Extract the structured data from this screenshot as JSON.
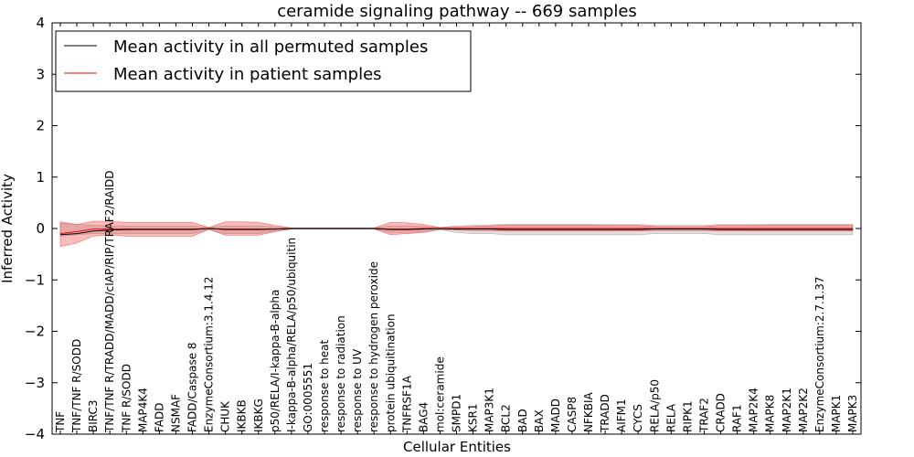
{
  "chart_data": {
    "type": "line",
    "title": "ceramide signaling pathway -- 669 samples",
    "xlabel": "Cellular Entities",
    "ylabel": "Inferred Activity",
    "ylim": [
      -4,
      4
    ],
    "yticks": [
      -4,
      -3,
      -2,
      -1,
      0,
      1,
      2,
      3,
      4
    ],
    "ytick_labels": [
      "−4",
      "−3",
      "−2",
      "−1",
      "0",
      "1",
      "2",
      "3",
      "4"
    ],
    "grid": false,
    "legend_location": "top-left",
    "categories": [
      "TNF",
      "TNF/TNF R/SODD",
      "BIRC3",
      "TNF/TNF R/TRADD/MADD/cIAP/RIP/TRAF2/RAIDD",
      "TNF R/SODD",
      "MAP4K4",
      "FADD",
      "NSMAF",
      "FADD/Caspase 8",
      "EnzymeConsortium:3.1.4.12",
      "CHUK",
      "IKBKB",
      "IKBKG",
      "p50/RELA/I-kappa-B-alpha",
      "I-kappa-B-alpha/RELA/p50/ubiquitin",
      "GO:0005551",
      "response to heat",
      "response to radiation",
      "response to UV",
      "response to hydrogen peroxide",
      "protein ubiquitination",
      "TNFRSF1A",
      "BAG4",
      "mol:ceramide",
      "SMPD1",
      "KSR1",
      "MAP3K1",
      "BCL2",
      "BAD",
      "BAX",
      "MADD",
      "CASP8",
      "NFKBIA",
      "TRADD",
      "AIFM1",
      "CYCS",
      "RELA/p50",
      "RELA",
      "RIPK1",
      "TRAF2",
      "CRADD",
      "RAF1",
      "MAP2K4",
      "MAPK8",
      "MAP2K1",
      "MAP2K2",
      "EnzymeConsortium:2.7.1.37",
      "MAPK1",
      "MAPK3"
    ],
    "series": [
      {
        "name": "Mean activity in all permuted samples",
        "color": "#000000",
        "values": [
          -0.12,
          -0.1,
          -0.05,
          -0.03,
          -0.02,
          -0.02,
          -0.02,
          -0.02,
          -0.02,
          0.0,
          -0.02,
          -0.02,
          -0.02,
          -0.01,
          0.0,
          0.0,
          0.0,
          0.0,
          0.0,
          0.0,
          -0.02,
          -0.02,
          -0.01,
          0.0,
          -0.01,
          -0.01,
          -0.01,
          -0.02,
          -0.02,
          -0.02,
          -0.02,
          -0.02,
          -0.02,
          -0.02,
          -0.02,
          -0.02,
          -0.01,
          -0.01,
          -0.01,
          -0.01,
          -0.02,
          -0.02,
          -0.02,
          -0.02,
          -0.02,
          -0.02,
          -0.02,
          -0.02,
          -0.02
        ],
        "band_lower": [
          -0.15,
          -0.12,
          -0.1,
          -0.1,
          -0.1,
          -0.1,
          -0.1,
          -0.1,
          -0.1,
          -0.02,
          -0.1,
          -0.1,
          -0.1,
          -0.05,
          -0.01,
          -0.01,
          -0.01,
          -0.01,
          -0.01,
          -0.01,
          -0.08,
          -0.08,
          -0.06,
          -0.02,
          -0.08,
          -0.1,
          -0.1,
          -0.12,
          -0.12,
          -0.12,
          -0.12,
          -0.12,
          -0.12,
          -0.12,
          -0.12,
          -0.12,
          -0.1,
          -0.1,
          -0.1,
          -0.1,
          -0.12,
          -0.12,
          -0.12,
          -0.12,
          -0.12,
          -0.12,
          -0.12,
          -0.12,
          -0.12
        ],
        "band_upper": [
          0.1,
          0.08,
          0.06,
          0.05,
          0.05,
          0.05,
          0.05,
          0.05,
          0.05,
          0.02,
          0.05,
          0.05,
          0.05,
          0.03,
          0.01,
          0.01,
          0.01,
          0.01,
          0.01,
          0.01,
          0.05,
          0.05,
          0.04,
          0.02,
          0.05,
          0.06,
          0.07,
          0.08,
          0.08,
          0.08,
          0.08,
          0.08,
          0.08,
          0.08,
          0.08,
          0.08,
          0.06,
          0.06,
          0.06,
          0.06,
          0.08,
          0.08,
          0.08,
          0.08,
          0.08,
          0.08,
          0.08,
          0.08,
          0.08
        ]
      },
      {
        "name": "Mean activity in patient samples",
        "color": "#ff0000",
        "values": [
          -0.1,
          -0.06,
          -0.01,
          -0.01,
          -0.01,
          -0.01,
          -0.01,
          -0.01,
          -0.01,
          0.0,
          -0.01,
          -0.01,
          -0.01,
          -0.01,
          0.0,
          0.0,
          0.0,
          0.0,
          0.0,
          0.0,
          -0.01,
          -0.01,
          0.0,
          0.0,
          0.0,
          0.0,
          0.0,
          0.0,
          0.0,
          0.0,
          0.0,
          0.0,
          0.0,
          0.0,
          0.0,
          0.0,
          0.0,
          0.0,
          0.0,
          0.0,
          0.0,
          0.0,
          0.0,
          0.0,
          0.0,
          0.0,
          0.0,
          0.0,
          0.0
        ],
        "band_lower": [
          -0.35,
          -0.28,
          -0.15,
          -0.12,
          -0.15,
          -0.15,
          -0.15,
          -0.15,
          -0.15,
          -0.02,
          -0.13,
          -0.13,
          -0.13,
          -0.06,
          -0.01,
          -0.01,
          -0.01,
          -0.01,
          -0.01,
          -0.01,
          -0.12,
          -0.1,
          -0.08,
          -0.02,
          -0.03,
          -0.04,
          -0.04,
          -0.05,
          -0.05,
          -0.05,
          -0.05,
          -0.05,
          -0.05,
          -0.05,
          -0.05,
          -0.05,
          -0.04,
          -0.04,
          -0.04,
          -0.04,
          -0.05,
          -0.05,
          -0.05,
          -0.05,
          -0.05,
          -0.05,
          -0.05,
          -0.05,
          -0.05
        ],
        "band_upper": [
          0.13,
          0.08,
          0.14,
          0.14,
          0.12,
          0.12,
          0.12,
          0.12,
          0.12,
          0.02,
          0.13,
          0.13,
          0.12,
          0.06,
          0.01,
          0.01,
          0.01,
          0.01,
          0.01,
          0.01,
          0.12,
          0.11,
          0.08,
          0.02,
          0.03,
          0.04,
          0.05,
          0.07,
          0.07,
          0.07,
          0.07,
          0.07,
          0.07,
          0.06,
          0.06,
          0.06,
          0.04,
          0.04,
          0.04,
          0.04,
          0.06,
          0.06,
          0.06,
          0.07,
          0.07,
          0.07,
          0.07,
          0.07,
          0.07
        ]
      }
    ]
  }
}
